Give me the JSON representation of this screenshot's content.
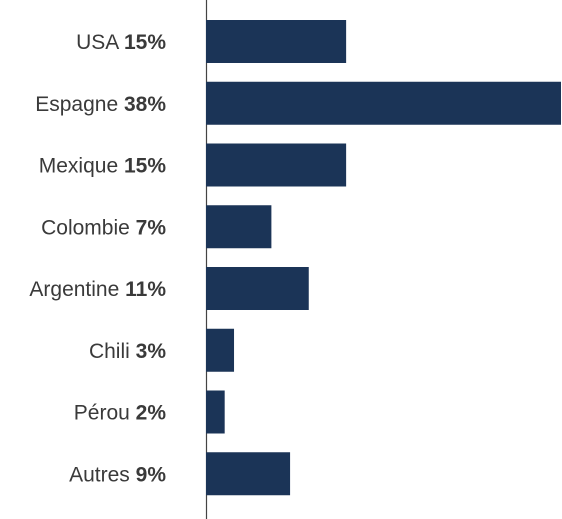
{
  "colors": {
    "bar": "#1b3457",
    "axis": "#444444",
    "text": "#3a3a3a",
    "background": "#ffffff"
  },
  "chart_data": {
    "type": "bar",
    "orientation": "horizontal",
    "categories": [
      "USA",
      "Espagne",
      "Mexique",
      "Colombie",
      "Argentine",
      "Chili",
      "Pérou",
      "Autres"
    ],
    "values": [
      15,
      38,
      15,
      7,
      11,
      3,
      2,
      9
    ],
    "value_labels": [
      "15%",
      "38%",
      "15%",
      "7%",
      "11%",
      "3%",
      "2%",
      "9%"
    ],
    "unit": "%",
    "xlim": [
      0,
      38
    ],
    "grid": false,
    "legend": "none"
  }
}
